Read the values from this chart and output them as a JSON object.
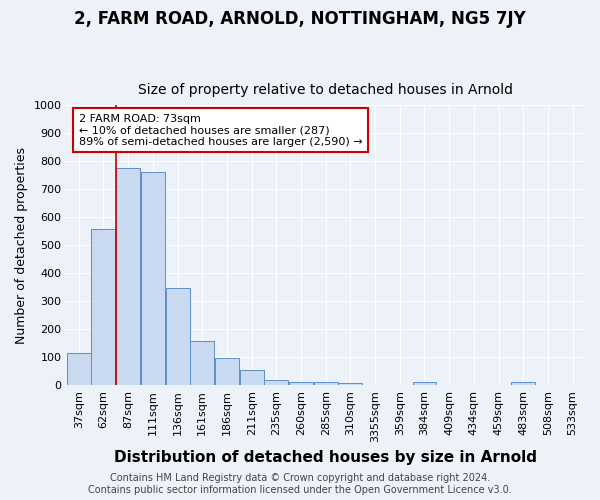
{
  "title": "2, FARM ROAD, ARNOLD, NOTTINGHAM, NG5 7JY",
  "subtitle": "Size of property relative to detached houses in Arnold",
  "xlabel": "Distribution of detached houses by size in Arnold",
  "ylabel": "Number of detached properties",
  "bar_labels": [
    "37sqm",
    "62sqm",
    "87sqm",
    "111sqm",
    "136sqm",
    "161sqm",
    "186sqm",
    "211sqm",
    "235sqm",
    "260sqm",
    "285sqm",
    "310sqm",
    "3355sqm",
    "359sqm",
    "384sqm",
    "409sqm",
    "434sqm",
    "459sqm",
    "483sqm",
    "508sqm",
    "533sqm"
  ],
  "bar_values": [
    113,
    557,
    775,
    762,
    347,
    158,
    98,
    52,
    18,
    12,
    10,
    8,
    0,
    0,
    10,
    0,
    0,
    0,
    10,
    0,
    0
  ],
  "bar_color": "#c9d9f0",
  "bar_edge_color": "#5b8fc9",
  "ylim": [
    0,
    1000
  ],
  "yticks": [
    0,
    100,
    200,
    300,
    400,
    500,
    600,
    700,
    800,
    900,
    1000
  ],
  "vline_color": "#cc0000",
  "annotation_text": "2 FARM ROAD: 73sqm\n← 10% of detached houses are smaller (287)\n89% of semi-detached houses are larger (2,590) →",
  "annotation_box_color": "#ffffff",
  "annotation_box_edge": "#cc0000",
  "footer_text": "Contains HM Land Registry data © Crown copyright and database right 2024.\nContains public sector information licensed under the Open Government Licence v3.0.",
  "background_color": "#edf1f8",
  "grid_color": "#ffffff",
  "title_fontsize": 12,
  "subtitle_fontsize": 10,
  "xlabel_fontsize": 11,
  "ylabel_fontsize": 9,
  "tick_fontsize": 8,
  "footer_fontsize": 7,
  "ann_fontsize": 8
}
